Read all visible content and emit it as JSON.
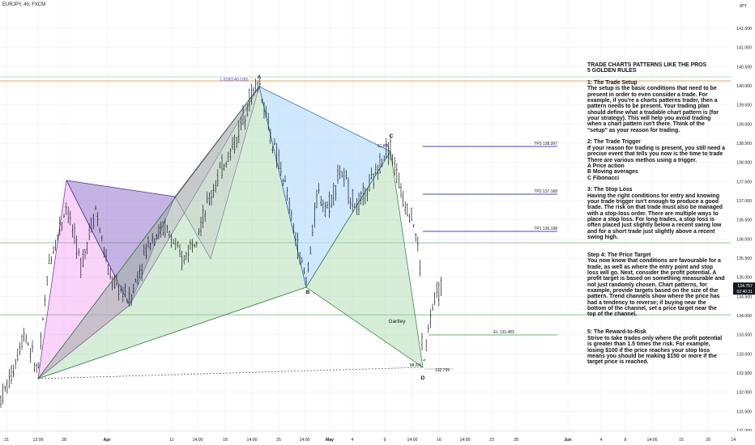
{
  "header": {
    "symbol": "EURJPY, 4h, FXCM",
    "currency": "JPY"
  },
  "colors": {
    "up": "#26a69a",
    "down": "#ef5350",
    "bar": "#131722",
    "grid": "#f0f3fa",
    "tp_line": "#3f3fd8",
    "entry_line": "#66bb6a",
    "fib_line": "#f57f17",
    "pattern_pink": "#ee82ee",
    "pattern_purple": "#9c27b0",
    "pattern_green": "#a5d6a7",
    "pattern_blue": "#bbdefb"
  },
  "chart_data": {
    "type": "ohlc",
    "price_axis": {
      "ticks": [
        "141.500",
        "141.000",
        "140.500",
        "140.000",
        "139.500",
        "139.000",
        "138.500",
        "138.000",
        "137.500",
        "137.000",
        "136.500",
        "136.000",
        "135.500",
        "135.000",
        "134.500",
        "134.000",
        "133.500",
        "133.000",
        "132.500",
        "132.000",
        "131.500",
        "131.000"
      ],
      "current_price": "134.757",
      "current_time": "02:40:31",
      "range": [
        130.75,
        141.95
      ]
    },
    "time_axis": {
      "ticks": [
        "21",
        "13:00",
        "28",
        "Apr",
        "11",
        "14:00",
        "18",
        "14:00",
        "25",
        "14:00",
        "May",
        "4",
        "9",
        "14:00",
        "16",
        "14:00",
        "23",
        "28",
        "Jun",
        "4",
        "8",
        "14:00",
        "15",
        "20",
        "14:"
      ]
    },
    "pattern": {
      "name": "Gartley",
      "points": [
        {
          "label": "A",
          "price": 140.0
        },
        {
          "label": "B",
          "price": 134.75
        },
        {
          "label": "C",
          "price": 138.4
        },
        {
          "label": "D",
          "price": 132.6
        }
      ],
      "ratios": [
        {
          "label": "61.8%",
          "near": "C"
        },
        {
          "label": "88.6%",
          "near": "D"
        }
      ],
      "fib_extension": "1.618(140.100)",
      "d_price": "132.739"
    },
    "levels": [
      {
        "label": "TP3",
        "value": "138.397"
      },
      {
        "label": "TP2",
        "value": "137.168"
      },
      {
        "label": "TP1",
        "value": "136.198"
      },
      {
        "label": "EL",
        "value": "133.483"
      }
    ]
  },
  "notes": {
    "title1": "TRADE CHARTS PATTERNS LIKE THE PROS",
    "title2": " 5 GOLDEN RULES",
    "r1_head": " 1: The Trade Setup",
    "r1_body": "The setup is the basic conditions that need to be present in order to even consider a trade. For example, if you're a charts patterns trader, then a pattern needs to be present. Your trading plan should define what a tradable chart pattern is (for your strategy). This will help you avoid trading when a chart pattern isn't there. Think of the \"setup\" as your reason for trading.",
    "r2_head": " 2: The Trade Trigger",
    "r2_body": "If your reason for trading is present, you still need a precise event that tells you now is the time to trade There are various methos using a trigger.",
    "r2_a": "A Price action",
    "r2_b": "B Moving averages",
    "r2_c": "C Fibonacci",
    "r3_head": " 3: The Stop Loss",
    "r3_body": "Having the right conditions for entry and knowing your trade trigger isn't enough to produce a good trade. The risk on that trade must also be managed with a stop-loss order. There are multiple ways to place a stop loss. For long trades, a stop loss is often placed just slightly below a recent swing low and for a short trade just slightly above a recent swing high.",
    "r4_head": "Step 4: The Price Target",
    "r4_body": "You now know that conditions are favourable for a trade, as well as where the entry point and stop loss will go. Next, consider the profit potential. A profit target is based on something measurable and not just randomly chosen. Chart patterns, for example, provide targets based on the size of the pattern. Trend channels show where the price has had a tendency to reverse; if buying near the bottom of the channel, set a price target near the top of the channel.",
    "r5_head": "  5: The Reward-to-Risk",
    "r5_body": "Strive to take trades only where the profit potential is greater than 1.5 times the risk. For example, losing $100 if the price reaches your stop loss means you should be making $150 or more if the target price is reached."
  }
}
